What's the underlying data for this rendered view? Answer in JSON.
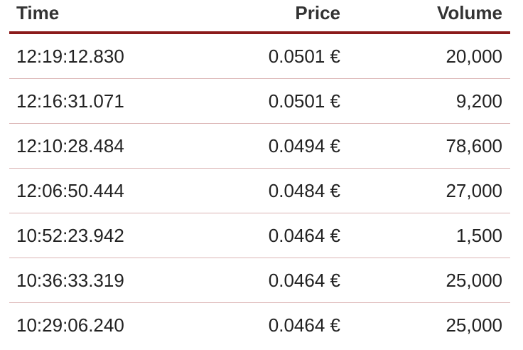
{
  "table": {
    "headers": {
      "time": "Time",
      "price": "Price",
      "volume": "Volume"
    },
    "rows": [
      {
        "time": "12:19:12.830",
        "price": "0.0501 €",
        "volume": "20,000"
      },
      {
        "time": "12:16:31.071",
        "price": "0.0501 €",
        "volume": "9,200"
      },
      {
        "time": "12:10:28.484",
        "price": "0.0494 €",
        "volume": "78,600"
      },
      {
        "time": "12:06:50.444",
        "price": "0.0484 €",
        "volume": "27,000"
      },
      {
        "time": "10:52:23.942",
        "price": "0.0464 €",
        "volume": "1,500"
      },
      {
        "time": "10:36:33.319",
        "price": "0.0464 €",
        "volume": "25,000"
      },
      {
        "time": "10:29:06.240",
        "price": "0.0464 €",
        "volume": "25,000"
      }
    ]
  },
  "colors": {
    "header_rule": "#8b1a1a",
    "row_divider": "#dbb4b4",
    "text": "#222222"
  }
}
